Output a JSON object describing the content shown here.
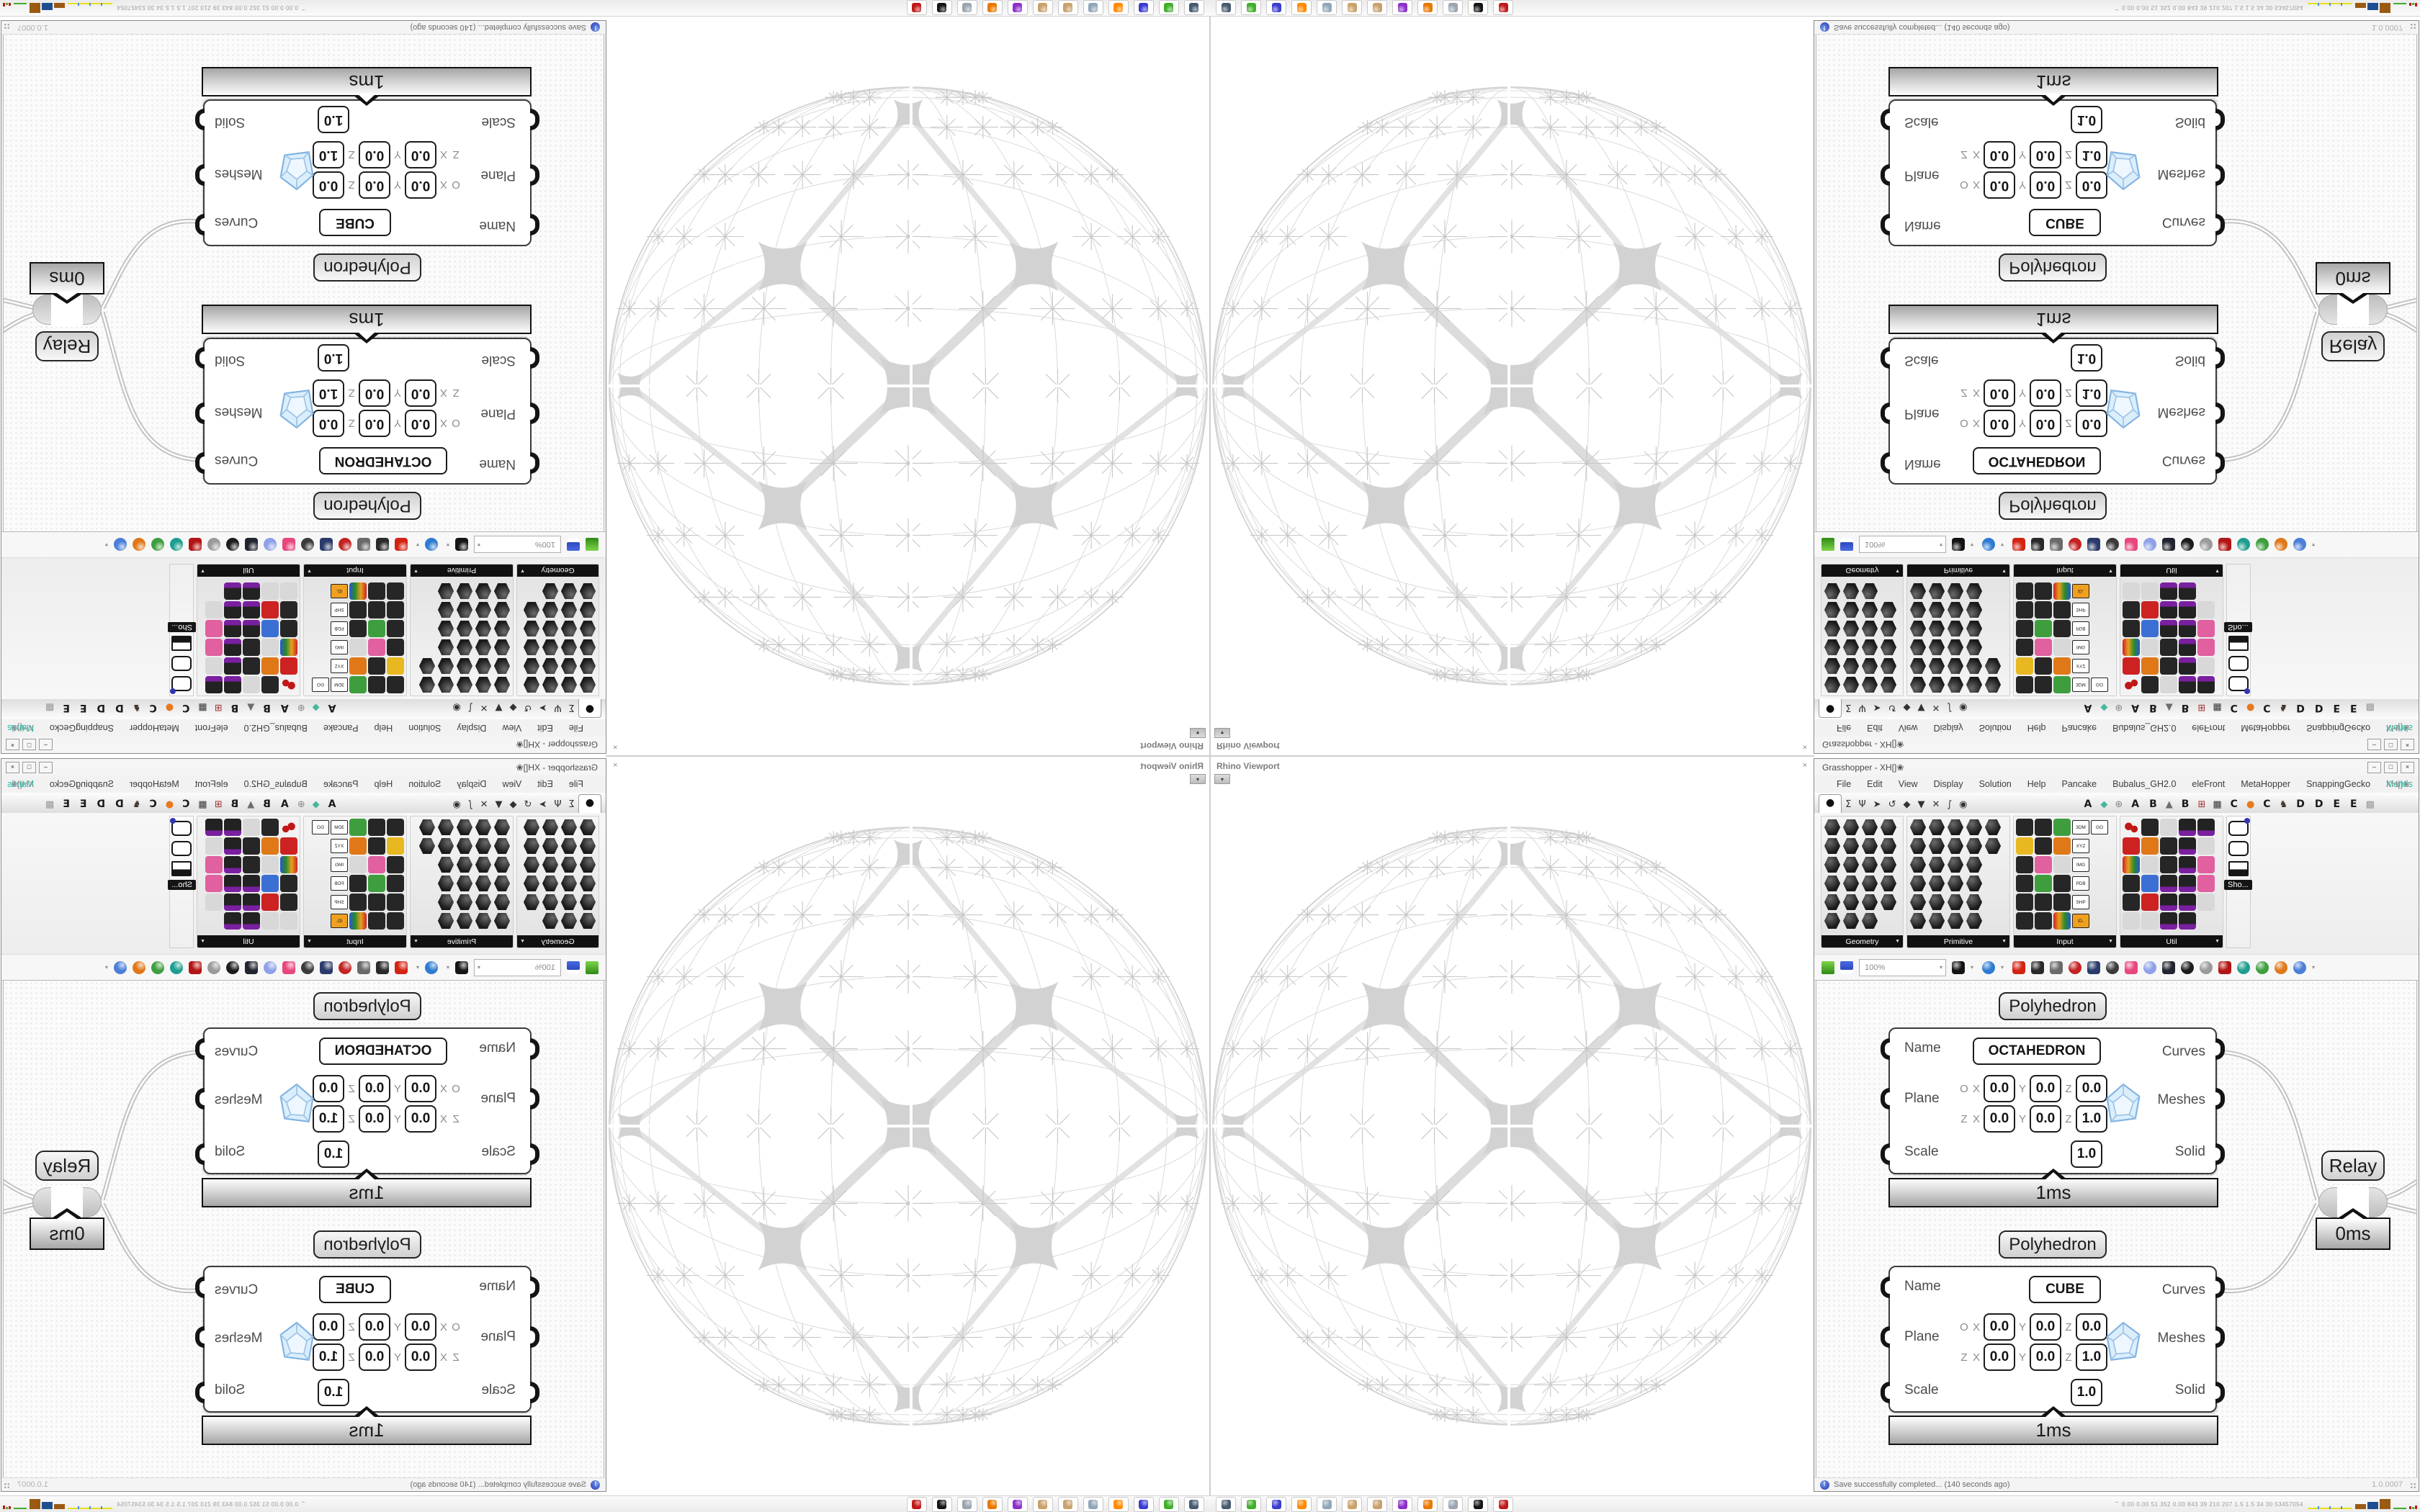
{
  "window": {
    "title": "Grasshopper - XH[]❀",
    "min": "–",
    "max": "□",
    "close": "×"
  },
  "menu": {
    "items": [
      "File",
      "Edit",
      "View",
      "Display",
      "Solution",
      "Help",
      "Pancake",
      "Bubalus_GH2.0",
      "eleFront",
      "MetaHopper",
      "SnappingGecko",
      "Mantis"
    ],
    "accent_item": "Mantis",
    "accent_color": "#16c2ad",
    "right_label": "XH[]❀"
  },
  "tabs": {
    "items": [
      {
        "g": "●",
        "sel": true,
        "name": "params"
      },
      {
        "g": "Σ",
        "name": "maths"
      },
      {
        "g": "Ψ",
        "name": "sets"
      },
      {
        "g": "➤",
        "name": "vector"
      },
      {
        "g": "↺",
        "name": "curve"
      },
      {
        "g": "◆",
        "name": "surface"
      },
      {
        "g": "▼",
        "name": "mesh"
      },
      {
        "g": "✕",
        "name": "intersect"
      },
      {
        "g": "∫",
        "name": "transform"
      },
      {
        "g": "◉",
        "name": "display"
      },
      {
        "g": "A",
        "letter": true
      },
      {
        "g": "◆",
        "c": "#45b89a"
      },
      {
        "g": "⊕",
        "c": "#8a8a8a"
      },
      {
        "g": "A",
        "letter": true
      },
      {
        "g": "B",
        "letter": true
      },
      {
        "g": "▲",
        "c": "#6d6d6d"
      },
      {
        "g": "B",
        "letter": true
      },
      {
        "g": "⊞",
        "c": "#a03030"
      },
      {
        "g": "▦",
        "c": "#333333"
      },
      {
        "g": "C",
        "letter": true
      },
      {
        "g": "●",
        "c": "#e8791e"
      },
      {
        "g": "C",
        "letter": true
      },
      {
        "g": "♞",
        "c": "#40332a"
      },
      {
        "g": "D",
        "letter": true
      },
      {
        "g": "D",
        "letter": true
      },
      {
        "g": "E",
        "letter": true
      },
      {
        "g": "E",
        "letter": true
      },
      {
        "g": "▩",
        "c": "#9a9a9a"
      }
    ]
  },
  "panels": [
    {
      "name": "Geometry",
      "width": 115,
      "rows": [
        "HHHH",
        "HHHH",
        "HHHH",
        "HHHH",
        "HHHH",
        "HHH"
      ]
    },
    {
      "name": "Primitive",
      "width": 144,
      "rows": [
        "HHHHH",
        "HHHHH",
        "HHHH",
        "HHHH",
        "HHHH",
        "HHHH"
      ]
    },
    {
      "name": "Input",
      "width": 144,
      "rows": [
        [
          "S",
          "S",
          "g",
          "t:3DM",
          "t:GO"
        ],
        [
          "y",
          "S",
          "o",
          "t:XYZ"
        ],
        [
          "S",
          "p",
          "w",
          "t:IMG"
        ],
        [
          "S",
          "g",
          "S",
          "t:PDB"
        ],
        [
          "S",
          "S",
          "S",
          "t:SHP"
        ],
        [
          "S",
          "S",
          "m",
          "r:ID."
        ]
      ]
    },
    {
      "name": "Util",
      "width": 144,
      "rows": [
        [
          "c",
          "S",
          "w",
          "P",
          "P"
        ],
        [
          "r",
          "o",
          "S",
          "P",
          "w"
        ],
        [
          "m",
          "w",
          "S",
          "P",
          "p"
        ],
        [
          "S",
          "b",
          "P",
          "P",
          "p"
        ],
        [
          "S",
          "r",
          "P",
          "P",
          "w"
        ],
        [
          "w",
          "w",
          "P",
          "P"
        ]
      ]
    }
  ],
  "extra_panel": {
    "tooltip": "Sho..."
  },
  "toolbar": {
    "zoom_value": "100%",
    "icons": [
      {
        "n": "zoom-extents-icon",
        "c": "#141414"
      },
      {
        "n": "caret"
      },
      {
        "n": "preview-eye-icon",
        "c": "#2e7bd0",
        "round": true
      },
      {
        "n": "caret"
      },
      {
        "n": "sketch-pen-icon",
        "c": "#d42313"
      },
      {
        "n": "projector-icon",
        "c": "#2a2a2a"
      },
      {
        "n": "at-badge-icon",
        "c": "#6a6a6a"
      },
      {
        "n": "gha-loader-icon",
        "c": "#c22222",
        "round": true
      },
      {
        "n": "window-views-icon",
        "c": "#2a3a6a"
      },
      {
        "n": "find-magnifier-icon",
        "c": "#3a3a3a",
        "round": true
      },
      {
        "n": "bag-icon",
        "c": "#e8467c"
      },
      {
        "n": "balloon-icon",
        "c": "#8fa0e8",
        "round": true
      },
      {
        "n": "strands-icon",
        "c": "#20242e"
      },
      {
        "n": "sphere-dark-icon",
        "c": "#1c1c1c",
        "round": true
      },
      {
        "n": "cans-icon",
        "c": "#9a9a9a",
        "round": true
      },
      {
        "n": "gem-red-icon",
        "c": "#b41414"
      },
      {
        "n": "ball-teal-icon",
        "c": "#1d9e8f",
        "round": true
      },
      {
        "n": "ball-green-icon",
        "c": "#3f9e3f",
        "round": true
      },
      {
        "n": "ball-orange-icon",
        "c": "#e07818",
        "round": true
      },
      {
        "n": "ball-blue-icon",
        "c": "#4a7ed8",
        "round": true
      },
      {
        "n": "caret"
      }
    ]
  },
  "viewport": {
    "label": "Rhino Viewport",
    "close": "×"
  },
  "canvas": {
    "components": [
      {
        "header": "Polyhedron",
        "inputs": [
          "Name",
          "Plane",
          "Scale"
        ],
        "outputs": [
          "Curves",
          "Meshes",
          "Solid"
        ],
        "name_value": "OCTAHEDRON",
        "plane": {
          "row1_prefix": "O",
          "row2_prefix": "Z",
          "x": "X",
          "y": "Y",
          "z": "Z",
          "row1": [
            "0.0",
            "0.0",
            "0.0"
          ],
          "row2": [
            "0.0",
            "0.0",
            "1.0"
          ]
        },
        "scale_value": "1.0",
        "time": "1ms"
      },
      {
        "header": "Polyhedron",
        "inputs": [
          "Name",
          "Plane",
          "Scale"
        ],
        "outputs": [
          "Curves",
          "Meshes",
          "Solid"
        ],
        "name_value": "CUBE",
        "plane": {
          "row1_prefix": "O",
          "row2_prefix": "Z",
          "x": "X",
          "y": "Y",
          "z": "Z",
          "row1": [
            "0.0",
            "0.0",
            "0.0"
          ],
          "row2": [
            "0.0",
            "0.0",
            "1.0"
          ]
        },
        "scale_value": "1.0",
        "time": "1ms"
      }
    ],
    "relay": {
      "label": "Relay",
      "time": "0ms"
    },
    "status_left": "Save successfully completed... (140 seconds ago)",
    "status_right": "1.0.0007"
  },
  "taskbar": {
    "status_text": "0.00 0.00  51  352 0.00 843  39  210 207  1.5  1.5  34  30  53457054",
    "icons": [
      {
        "n": "system-monitor-icon",
        "c": "#45586e"
      },
      {
        "n": "green-drive-icon",
        "c": "#3fae29"
      },
      {
        "n": "floppy-64-icon",
        "c": "#3b3bd0"
      },
      {
        "n": "firefox-icon",
        "c": "#ff8a00"
      },
      {
        "n": "calculator-icon",
        "c": "#8fa6b8"
      },
      {
        "n": "palette-icon",
        "c": "#c9a06a"
      },
      {
        "n": "palette-icon-2",
        "c": "#c9a06a"
      },
      {
        "n": "owl-icon",
        "c": "#8b2fc9"
      },
      {
        "n": "blender-icon",
        "c": "#ea7600"
      },
      {
        "n": "printer-icon",
        "c": "#9aa4b0"
      },
      {
        "n": "fox-icon",
        "c": "#141414"
      },
      {
        "n": "gear-red-icon",
        "c": "#c01818"
      }
    ],
    "chart_bars": [
      {
        "c": "#9a5a12",
        "h": 7
      },
      {
        "c": "#1d4f8f",
        "h": 10
      },
      {
        "c": "#9a5a12",
        "h": 14
      }
    ]
  }
}
